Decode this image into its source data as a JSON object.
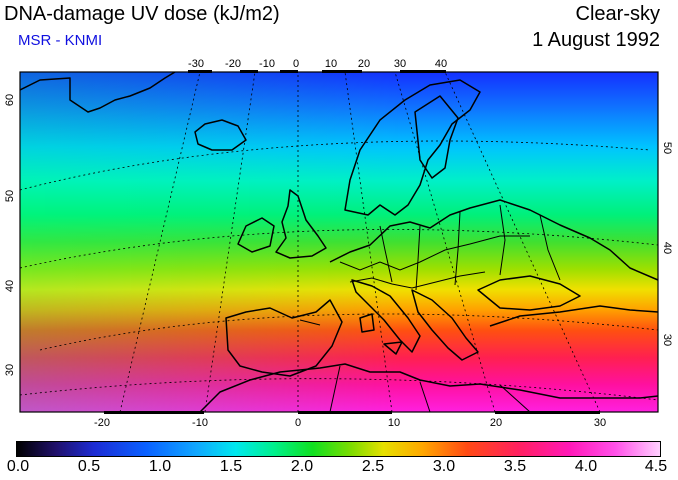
{
  "header": {
    "title": "DNA-damage UV dose (kJ/m2)",
    "source": "MSR - KNMI",
    "condition": "Clear-sky",
    "date": "1 August 1992"
  },
  "map": {
    "top_lon_labels": [
      "-30",
      "-20",
      "-10",
      "0",
      "10",
      "20",
      "30",
      "40"
    ],
    "bottom_lon_labels": [
      "-20",
      "-10",
      "0",
      "10",
      "20",
      "30"
    ],
    "left_lat_labels": [
      "60",
      "50",
      "40",
      "30"
    ],
    "right_lat_labels": [
      "50",
      "40",
      "30"
    ]
  },
  "colorbar": {
    "labels": [
      "0.0",
      "0.5",
      "1.0",
      "1.5",
      "2.0",
      "2.5",
      "3.0",
      "3.5",
      "4.0",
      "4.5"
    ]
  }
}
